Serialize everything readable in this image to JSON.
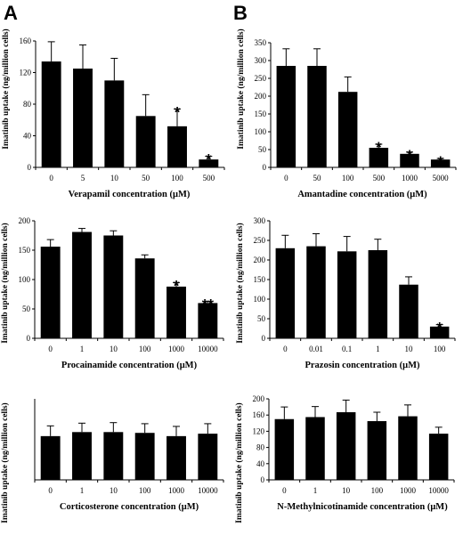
{
  "panel_letters": [
    "A",
    "B"
  ],
  "chart_data": [
    {
      "type": "bar",
      "categories": [
        "0",
        "5",
        "10",
        "50",
        "100",
        "500"
      ],
      "values": [
        134,
        125,
        110,
        65,
        52,
        10
      ],
      "errors": [
        25,
        30,
        28,
        27,
        22,
        4
      ],
      "significance": [
        "",
        "",
        "",
        "",
        "*",
        "*"
      ],
      "xlabel": "Verapamil concentration (μM)",
      "ylabel": "Imatinib uptake (ng/million cells)",
      "ylim": [
        0,
        160
      ],
      "yticks": [
        0,
        40,
        80,
        120,
        160
      ]
    },
    {
      "type": "bar",
      "categories": [
        "0",
        "50",
        "100",
        "500",
        "1000",
        "5000"
      ],
      "values": [
        285,
        285,
        212,
        55,
        38,
        22
      ],
      "errors": [
        48,
        48,
        42,
        10,
        5,
        3
      ],
      "significance": [
        "",
        "",
        "",
        "*",
        "*",
        "*"
      ],
      "xlabel": "Amantadine concentration (μM)",
      "ylabel": "Imatinib uptake (ng/million cells)",
      "ylim": [
        0,
        350
      ],
      "yticks": [
        0,
        50,
        100,
        150,
        200,
        250,
        300,
        350
      ]
    },
    {
      "type": "bar",
      "categories": [
        "0",
        "1",
        "10",
        "100",
        "1000",
        "10000"
      ],
      "values": [
        156,
        181,
        175,
        136,
        88,
        60
      ],
      "errors": [
        12,
        6,
        8,
        6,
        7,
        3
      ],
      "significance": [
        "",
        "",
        "",
        "",
        "*",
        "**"
      ],
      "xlabel": "Procainamide concentration (μM)",
      "ylabel": "Imatinib uptake (ng/million cells)",
      "ylim": [
        0,
        200
      ],
      "yticks": [
        0,
        50,
        100,
        150,
        200
      ]
    },
    {
      "type": "bar",
      "categories": [
        "0",
        "0.01",
        "0.1",
        "1",
        "10",
        "100"
      ],
      "values": [
        230,
        235,
        222,
        225,
        137,
        30
      ],
      "errors": [
        33,
        32,
        38,
        28,
        20,
        5
      ],
      "significance": [
        "",
        "",
        "",
        "",
        "",
        "*"
      ],
      "xlabel": "Prazosin concentration (μM)",
      "ylabel": "Imatinib uptake (ng/million cells)",
      "ylim": [
        0,
        300
      ],
      "yticks": [
        0,
        50,
        100,
        150,
        200,
        250,
        300
      ]
    },
    {
      "type": "bar",
      "categories": [
        "0",
        "1",
        "10",
        "100",
        "1000",
        "10000"
      ],
      "values": [
        162,
        177,
        177,
        174,
        162,
        171
      ],
      "errors": [
        38,
        33,
        35,
        34,
        36,
        37
      ],
      "significance": [
        "",
        "",
        "",
        "",
        "",
        ""
      ],
      "xlabel": "Corticosterone concentration (μM)",
      "ylabel": "Imatinib uptake (ng/million cells)",
      "ylim": [
        0,
        300
      ],
      "yticks": []
    },
    {
      "type": "bar",
      "categories": [
        "0",
        "1",
        "10",
        "100",
        "1000",
        "10000"
      ],
      "values": [
        150,
        155,
        167,
        145,
        157,
        114
      ],
      "errors": [
        30,
        26,
        30,
        22,
        28,
        16
      ],
      "significance": [
        "",
        "",
        "",
        "",
        "",
        ""
      ],
      "xlabel": "N-Methylnicotinamide concentration (μM)",
      "ylabel": "Imatinib uptake (ng/million cells)",
      "ylim": [
        0,
        200
      ],
      "yticks": [
        0,
        40,
        80,
        120,
        160,
        200
      ]
    }
  ]
}
